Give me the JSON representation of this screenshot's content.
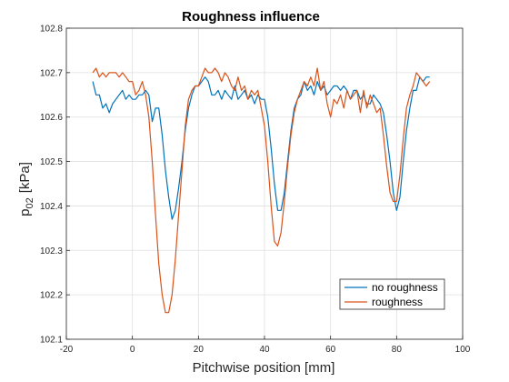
{
  "chart_data": {
    "type": "line",
    "title": "Roughness influence",
    "xlabel": "Pitchwise position [mm]",
    "ylabel": {
      "base": "p",
      "sub": "02",
      "rest": "[kPa]"
    },
    "xlim": [
      -20,
      100
    ],
    "ylim": [
      102.1,
      102.8
    ],
    "xticks": [
      -20,
      0,
      20,
      40,
      60,
      80,
      100
    ],
    "yticks": [
      102.1,
      102.2,
      102.3,
      102.4,
      102.5,
      102.6,
      102.7,
      102.8
    ],
    "grid": true,
    "legend_position": "bottom-right",
    "series": [
      {
        "name": "no roughness",
        "color": "#0072BD",
        "x": [
          -12,
          -11,
          -10,
          -9,
          -8,
          -7,
          -6,
          -5,
          -4,
          -3,
          -2,
          -1,
          0,
          1,
          2,
          3,
          4,
          5,
          6,
          7,
          8,
          9,
          10,
          11,
          12,
          13,
          14,
          15,
          16,
          17,
          18,
          19,
          20,
          21,
          22,
          23,
          24,
          25,
          26,
          27,
          28,
          29,
          30,
          31,
          32,
          33,
          34,
          35,
          36,
          37,
          38,
          39,
          40,
          41,
          42,
          43,
          44,
          45,
          46,
          47,
          48,
          49,
          50,
          51,
          52,
          53,
          54,
          55,
          56,
          57,
          58,
          59,
          60,
          61,
          62,
          63,
          64,
          65,
          66,
          67,
          68,
          69,
          70,
          71,
          72,
          73,
          74,
          75,
          76,
          77,
          78,
          79,
          80,
          81,
          82,
          83,
          84,
          85,
          86,
          87,
          88,
          89,
          90
        ],
        "y": [
          102.68,
          102.65,
          102.65,
          102.62,
          102.63,
          102.61,
          102.63,
          102.64,
          102.65,
          102.66,
          102.64,
          102.65,
          102.64,
          102.64,
          102.65,
          102.65,
          102.66,
          102.65,
          102.59,
          102.62,
          102.62,
          102.56,
          102.48,
          102.42,
          102.37,
          102.39,
          102.44,
          102.5,
          102.57,
          102.62,
          102.65,
          102.67,
          102.67,
          102.68,
          102.69,
          102.68,
          102.65,
          102.65,
          102.66,
          102.64,
          102.66,
          102.65,
          102.64,
          102.67,
          102.64,
          102.65,
          102.66,
          102.64,
          102.65,
          102.63,
          102.65,
          102.64,
          102.64,
          102.6,
          102.53,
          102.45,
          102.39,
          102.39,
          102.43,
          102.5,
          102.57,
          102.62,
          102.64,
          102.65,
          102.68,
          102.66,
          102.67,
          102.65,
          102.68,
          102.66,
          102.67,
          102.65,
          102.66,
          102.67,
          102.67,
          102.66,
          102.67,
          102.66,
          102.64,
          102.66,
          102.66,
          102.64,
          102.65,
          102.63,
          102.63,
          102.65,
          102.64,
          102.63,
          102.61,
          102.56,
          102.5,
          102.43,
          102.39,
          102.42,
          102.5,
          102.57,
          102.62,
          102.66,
          102.66,
          102.69,
          102.68,
          102.69,
          102.69
        ]
      },
      {
        "name": "roughness",
        "color": "#D95319",
        "x": [
          -12,
          -11,
          -10,
          -9,
          -8,
          -7,
          -6,
          -5,
          -4,
          -3,
          -2,
          -1,
          0,
          1,
          2,
          3,
          4,
          5,
          6,
          7,
          8,
          9,
          10,
          11,
          12,
          13,
          14,
          15,
          16,
          17,
          18,
          19,
          20,
          21,
          22,
          23,
          24,
          25,
          26,
          27,
          28,
          29,
          30,
          31,
          32,
          33,
          34,
          35,
          36,
          37,
          38,
          39,
          40,
          41,
          42,
          43,
          44,
          45,
          46,
          47,
          48,
          49,
          50,
          51,
          52,
          53,
          54,
          55,
          56,
          57,
          58,
          59,
          60,
          61,
          62,
          63,
          64,
          65,
          66,
          67,
          68,
          69,
          70,
          71,
          72,
          73,
          74,
          75,
          76,
          77,
          78,
          79,
          80,
          81,
          82,
          83,
          84,
          85,
          86,
          87,
          88,
          89,
          90
        ],
        "y": [
          102.7,
          102.71,
          102.69,
          102.7,
          102.69,
          102.7,
          102.7,
          102.7,
          102.69,
          102.7,
          102.69,
          102.68,
          102.68,
          102.65,
          102.66,
          102.68,
          102.65,
          102.6,
          102.5,
          102.38,
          102.27,
          102.2,
          102.16,
          102.16,
          102.2,
          102.28,
          102.38,
          102.48,
          102.58,
          102.64,
          102.66,
          102.67,
          102.67,
          102.69,
          102.71,
          102.7,
          102.7,
          102.71,
          102.7,
          102.68,
          102.7,
          102.69,
          102.67,
          102.66,
          102.69,
          102.66,
          102.67,
          102.64,
          102.66,
          102.65,
          102.66,
          102.62,
          102.58,
          102.5,
          102.4,
          102.32,
          102.31,
          102.34,
          102.41,
          102.49,
          102.56,
          102.61,
          102.64,
          102.66,
          102.68,
          102.67,
          102.69,
          102.67,
          102.71,
          102.66,
          102.68,
          102.63,
          102.6,
          102.64,
          102.63,
          102.65,
          102.62,
          102.66,
          102.64,
          102.65,
          102.66,
          102.61,
          102.66,
          102.62,
          102.65,
          102.63,
          102.61,
          102.62,
          102.56,
          102.49,
          102.43,
          102.41,
          102.41,
          102.47,
          102.55,
          102.62,
          102.65,
          102.67,
          102.7,
          102.69,
          102.68,
          102.67,
          102.68
        ]
      }
    ]
  }
}
